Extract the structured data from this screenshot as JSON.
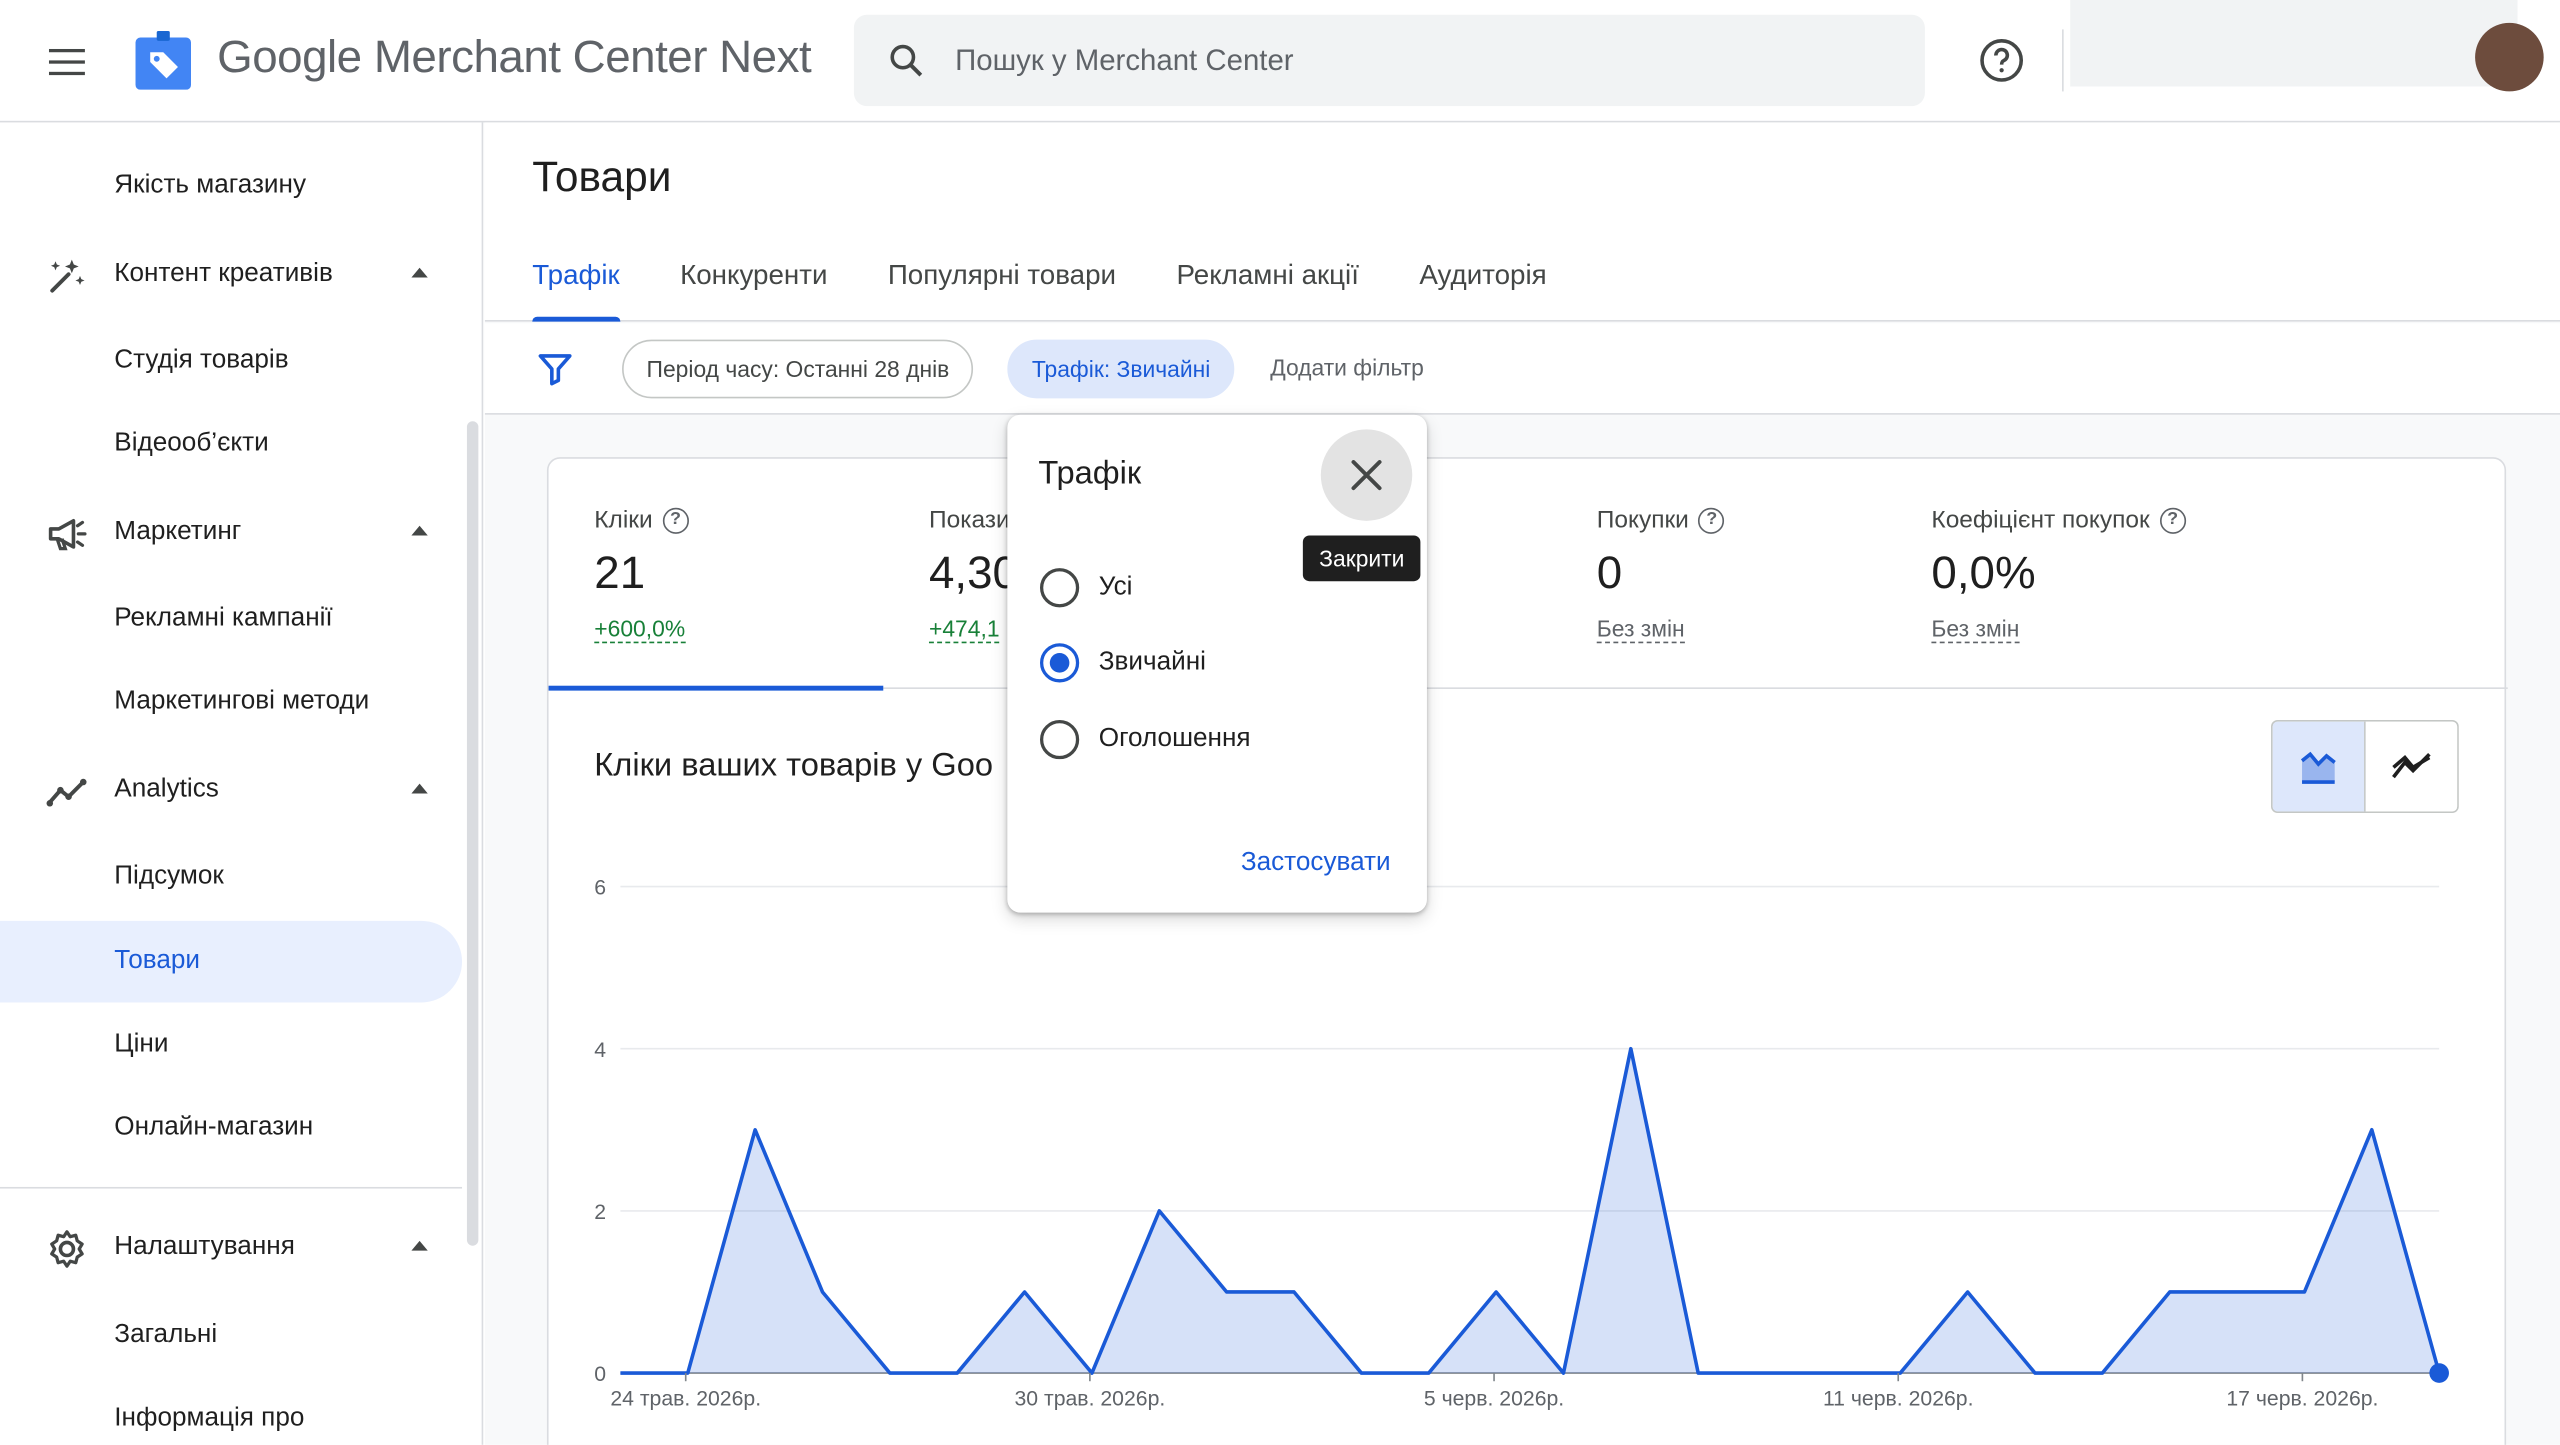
{
  "header": {
    "app_name": "Google Merchant Center Next",
    "search_placeholder": "Пошук у Merchant Center"
  },
  "sidebar": {
    "items": [
      {
        "label": "Якість магазину",
        "kind": "sub"
      },
      {
        "label": "Контент креативів",
        "kind": "group",
        "icon": "sparkle-pen-icon"
      },
      {
        "label": "Студія товарів",
        "kind": "sub"
      },
      {
        "label": "Відеооб’єкти",
        "kind": "sub"
      },
      {
        "label": "Маркетинг",
        "kind": "group",
        "icon": "megaphone-icon"
      },
      {
        "label": "Рекламні кампанії",
        "kind": "sub"
      },
      {
        "label": "Маркетингові методи",
        "kind": "sub"
      },
      {
        "label": "Analytics",
        "kind": "group",
        "icon": "trending-icon"
      },
      {
        "label": "Підсумок",
        "kind": "sub"
      },
      {
        "label": "Товари",
        "kind": "sub",
        "active": true
      },
      {
        "label": "Ціни",
        "kind": "sub"
      },
      {
        "label": "Онлайн-магазин",
        "kind": "sub"
      },
      {
        "label": "Налаштування",
        "kind": "group",
        "icon": "gear-icon"
      },
      {
        "label": "Загальні",
        "kind": "sub"
      },
      {
        "label": "Інформація про",
        "kind": "sub"
      }
    ]
  },
  "page": {
    "title": "Товари",
    "tabs": [
      "Трафік",
      "Конкуренти",
      "Популярні товари",
      "Рекламні акції",
      "Аудиторія"
    ],
    "active_tab": 0
  },
  "filters": {
    "period_chip": "Період часу: Останні 28 днів",
    "traffic_chip": "Трафік: Звичайні",
    "add_filter": "Додати фільтр"
  },
  "metrics": [
    {
      "label": "Кліки",
      "value": "21",
      "change": "+600,0%",
      "change_type": "up"
    },
    {
      "label": "Покази",
      "value": "4,30",
      "change": "+474,1",
      "change_type": "up"
    },
    {
      "label": "Покупки",
      "value": "0",
      "change": "Без змін",
      "change_type": "none"
    },
    {
      "label": "Коефіцієнт покупок",
      "value": "0,0%",
      "change": "Без змін",
      "change_type": "none"
    }
  ],
  "chart": {
    "title": "Кліки ваших товарів у Goo"
  },
  "chart_data": {
    "type": "area",
    "x_ticks": [
      "24 трав. 2026р.",
      "30 трав. 2026р.",
      "5 черв. 2026р.",
      "11 черв. 2026р.",
      "17 черв. 2026р."
    ],
    "ylim": [
      0,
      6
    ],
    "y_ticks": [
      0,
      2,
      4,
      6
    ],
    "grid": true,
    "series": [
      {
        "values": [
          0,
          0,
          3,
          1,
          0,
          0,
          1,
          0,
          2,
          1,
          1,
          0,
          0,
          1,
          0,
          4,
          0,
          0,
          0,
          0,
          1,
          0,
          0,
          1,
          1,
          1,
          3,
          0
        ],
        "color": "#1a5ad7"
      }
    ]
  },
  "popup": {
    "title": "Трафік",
    "close_tooltip": "Закрити",
    "options": [
      "Усі",
      "Звичайні",
      "Оголошення"
    ],
    "selected_index": 1,
    "apply_label": "Застосувати"
  },
  "colors": {
    "accent": "#1a5ad7",
    "positive": "#188038"
  }
}
